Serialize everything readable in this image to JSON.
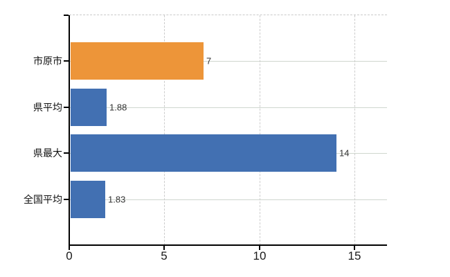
{
  "chart_data": {
    "type": "bar",
    "orientation": "horizontal",
    "title": "",
    "xlabel": "",
    "ylabel": "",
    "categories": [
      "市原市",
      "県平均",
      "県最大",
      "全国平均"
    ],
    "values": [
      7,
      1.88,
      14,
      1.83
    ],
    "value_labels": [
      "7",
      "1.88",
      "14",
      "1.83"
    ],
    "bar_colors": [
      "#ed9539",
      "#4270b2",
      "#4270b2",
      "#4270b2"
    ],
    "x_ticks": [
      0,
      5,
      10,
      15
    ],
    "x_tick_labels": [
      "0",
      "5",
      "10",
      "15"
    ],
    "xlim": [
      0,
      16.72
    ],
    "grid": true,
    "legend": "none"
  },
  "colors": {
    "highlight_bar": "#ed9539",
    "default_bar": "#4270b2",
    "h_gridline": "#cfd6ce",
    "v_gridline": "#cccccc",
    "axis": "#000000",
    "value_text": "#333333",
    "category_text": "#111111",
    "background": "#ffffff"
  }
}
